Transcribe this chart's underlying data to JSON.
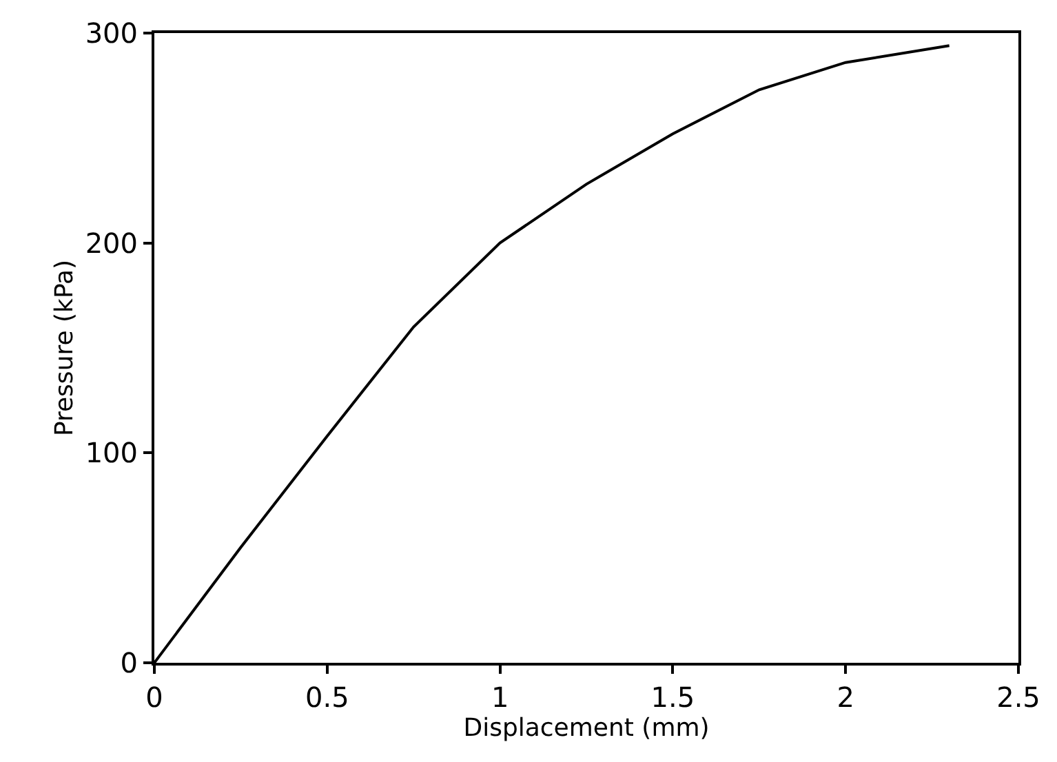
{
  "chart_data": {
    "type": "line",
    "xlabel": "Displacement (mm)",
    "ylabel": "Pressure (kPa)",
    "x": [
      0,
      0.25,
      0.5,
      0.75,
      1.0,
      1.25,
      1.5,
      1.75,
      2.0,
      2.3
    ],
    "series": [
      {
        "color": "#000000",
        "values": [
          0,
          55,
          108,
          160,
          200,
          228,
          252,
          273,
          286,
          294
        ]
      }
    ],
    "xlim": [
      0,
      2.5
    ],
    "xticks": [
      0,
      0.5,
      1,
      1.5,
      2,
      2.5
    ],
    "ylim": [
      0,
      300
    ],
    "yticks": [
      0,
      100,
      200,
      300
    ],
    "marker": "none",
    "line_style": "solid"
  }
}
